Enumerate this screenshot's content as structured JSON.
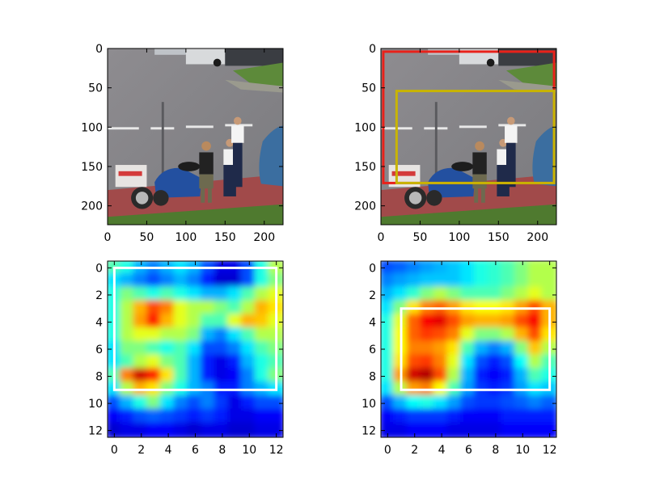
{
  "chart_data": [
    {
      "type": "image",
      "title": "",
      "content": "photo",
      "extent": [
        0,
        224
      ],
      "xticks": [
        "0",
        "50",
        "100",
        "150",
        "200"
      ],
      "yticks": [
        "0",
        "50",
        "100",
        "150",
        "200"
      ],
      "boxes": []
    },
    {
      "type": "image",
      "title": "",
      "content": "photo",
      "extent": [
        0,
        224
      ],
      "xticks": [
        "0",
        "50",
        "100",
        "150",
        "200"
      ],
      "yticks": [
        "0",
        "50",
        "100",
        "150",
        "200"
      ],
      "boxes": [
        {
          "color": "#e8211a",
          "x0": 3,
          "y0": 4,
          "x1": 221,
          "y1": 171
        },
        {
          "color": "#c8b400",
          "x0": 20,
          "y0": 54,
          "x1": 221,
          "y1": 171
        }
      ]
    },
    {
      "type": "heatmap",
      "title": "",
      "colormap": "jet",
      "extent": [
        -0.5,
        12.5
      ],
      "xticks": [
        "0",
        "2",
        "4",
        "6",
        "8",
        "10",
        "12"
      ],
      "yticks": [
        "0",
        "2",
        "4",
        "6",
        "8",
        "10",
        "12"
      ],
      "boxes": [
        {
          "color": "#ffffff",
          "x0": 0,
          "y0": 0,
          "x1": 12,
          "y1": 9
        }
      ],
      "grid": [
        [
          0.45,
          0.4,
          0.3,
          0.25,
          0.3,
          0.35,
          0.3,
          0.2,
          0.1,
          0.1,
          0.2,
          0.4,
          0.55
        ],
        [
          0.35,
          0.3,
          0.25,
          0.2,
          0.25,
          0.3,
          0.25,
          0.15,
          0.08,
          0.08,
          0.2,
          0.4,
          0.5
        ],
        [
          0.4,
          0.5,
          0.45,
          0.4,
          0.45,
          0.4,
          0.35,
          0.3,
          0.3,
          0.35,
          0.45,
          0.55,
          0.6
        ],
        [
          0.4,
          0.55,
          0.7,
          0.8,
          0.75,
          0.6,
          0.55,
          0.55,
          0.5,
          0.45,
          0.55,
          0.7,
          0.65
        ],
        [
          0.4,
          0.55,
          0.72,
          0.85,
          0.7,
          0.6,
          0.55,
          0.45,
          0.45,
          0.6,
          0.7,
          0.68,
          0.6
        ],
        [
          0.4,
          0.55,
          0.6,
          0.6,
          0.55,
          0.55,
          0.5,
          0.3,
          0.25,
          0.35,
          0.45,
          0.55,
          0.55
        ],
        [
          0.35,
          0.5,
          0.5,
          0.45,
          0.4,
          0.45,
          0.35,
          0.2,
          0.2,
          0.25,
          0.35,
          0.45,
          0.5
        ],
        [
          0.35,
          0.45,
          0.55,
          0.6,
          0.5,
          0.45,
          0.3,
          0.15,
          0.1,
          0.15,
          0.3,
          0.4,
          0.45
        ],
        [
          0.45,
          0.75,
          0.92,
          0.85,
          0.65,
          0.45,
          0.3,
          0.15,
          0.1,
          0.12,
          0.25,
          0.4,
          0.5
        ],
        [
          0.35,
          0.55,
          0.7,
          0.65,
          0.5,
          0.4,
          0.3,
          0.25,
          0.15,
          0.15,
          0.25,
          0.3,
          0.35
        ],
        [
          0.2,
          0.3,
          0.4,
          0.5,
          0.35,
          0.25,
          0.2,
          0.25,
          0.18,
          0.1,
          0.15,
          0.2,
          0.2
        ],
        [
          0.12,
          0.15,
          0.2,
          0.22,
          0.2,
          0.18,
          0.15,
          0.18,
          0.15,
          0.1,
          0.1,
          0.12,
          0.12
        ],
        [
          0.08,
          0.1,
          0.1,
          0.12,
          0.12,
          0.1,
          0.08,
          0.1,
          0.1,
          0.08,
          0.08,
          0.1,
          0.1
        ]
      ]
    },
    {
      "type": "heatmap",
      "title": "",
      "colormap": "jet",
      "extent": [
        -0.5,
        12.5
      ],
      "xticks": [
        "0",
        "2",
        "4",
        "6",
        "8",
        "10",
        "12"
      ],
      "yticks": [
        "0",
        "2",
        "4",
        "6",
        "8",
        "10",
        "12"
      ],
      "boxes": [
        {
          "color": "#ffffff",
          "x0": 1,
          "y0": 3,
          "x1": 12,
          "y1": 9
        }
      ],
      "grid": [
        [
          0.2,
          0.22,
          0.25,
          0.28,
          0.3,
          0.32,
          0.35,
          0.4,
          0.42,
          0.45,
          0.5,
          0.55,
          0.55
        ],
        [
          0.25,
          0.28,
          0.3,
          0.32,
          0.32,
          0.32,
          0.35,
          0.4,
          0.42,
          0.45,
          0.5,
          0.55,
          0.55
        ],
        [
          0.3,
          0.35,
          0.42,
          0.5,
          0.55,
          0.5,
          0.45,
          0.45,
          0.45,
          0.5,
          0.55,
          0.6,
          0.55
        ],
        [
          0.35,
          0.5,
          0.65,
          0.75,
          0.78,
          0.72,
          0.65,
          0.62,
          0.62,
          0.65,
          0.72,
          0.8,
          0.7
        ],
        [
          0.4,
          0.6,
          0.78,
          0.88,
          0.9,
          0.8,
          0.72,
          0.7,
          0.7,
          0.72,
          0.8,
          0.88,
          0.7
        ],
        [
          0.4,
          0.62,
          0.78,
          0.82,
          0.8,
          0.75,
          0.6,
          0.5,
          0.5,
          0.55,
          0.7,
          0.8,
          0.65
        ],
        [
          0.4,
          0.62,
          0.75,
          0.75,
          0.72,
          0.65,
          0.45,
          0.3,
          0.25,
          0.3,
          0.5,
          0.68,
          0.55
        ],
        [
          0.4,
          0.65,
          0.8,
          0.82,
          0.75,
          0.6,
          0.35,
          0.2,
          0.15,
          0.2,
          0.38,
          0.55,
          0.45
        ],
        [
          0.4,
          0.72,
          0.92,
          0.95,
          0.8,
          0.55,
          0.3,
          0.15,
          0.12,
          0.15,
          0.3,
          0.45,
          0.4
        ],
        [
          0.35,
          0.55,
          0.72,
          0.75,
          0.62,
          0.45,
          0.28,
          0.18,
          0.15,
          0.18,
          0.28,
          0.35,
          0.32
        ],
        [
          0.2,
          0.3,
          0.38,
          0.4,
          0.35,
          0.28,
          0.2,
          0.18,
          0.18,
          0.2,
          0.22,
          0.25,
          0.22
        ],
        [
          0.12,
          0.15,
          0.18,
          0.18,
          0.18,
          0.15,
          0.12,
          0.12,
          0.12,
          0.15,
          0.15,
          0.15,
          0.15
        ],
        [
          0.1,
          0.1,
          0.12,
          0.12,
          0.12,
          0.1,
          0.1,
          0.1,
          0.1,
          0.12,
          0.12,
          0.12,
          0.12
        ]
      ]
    }
  ]
}
